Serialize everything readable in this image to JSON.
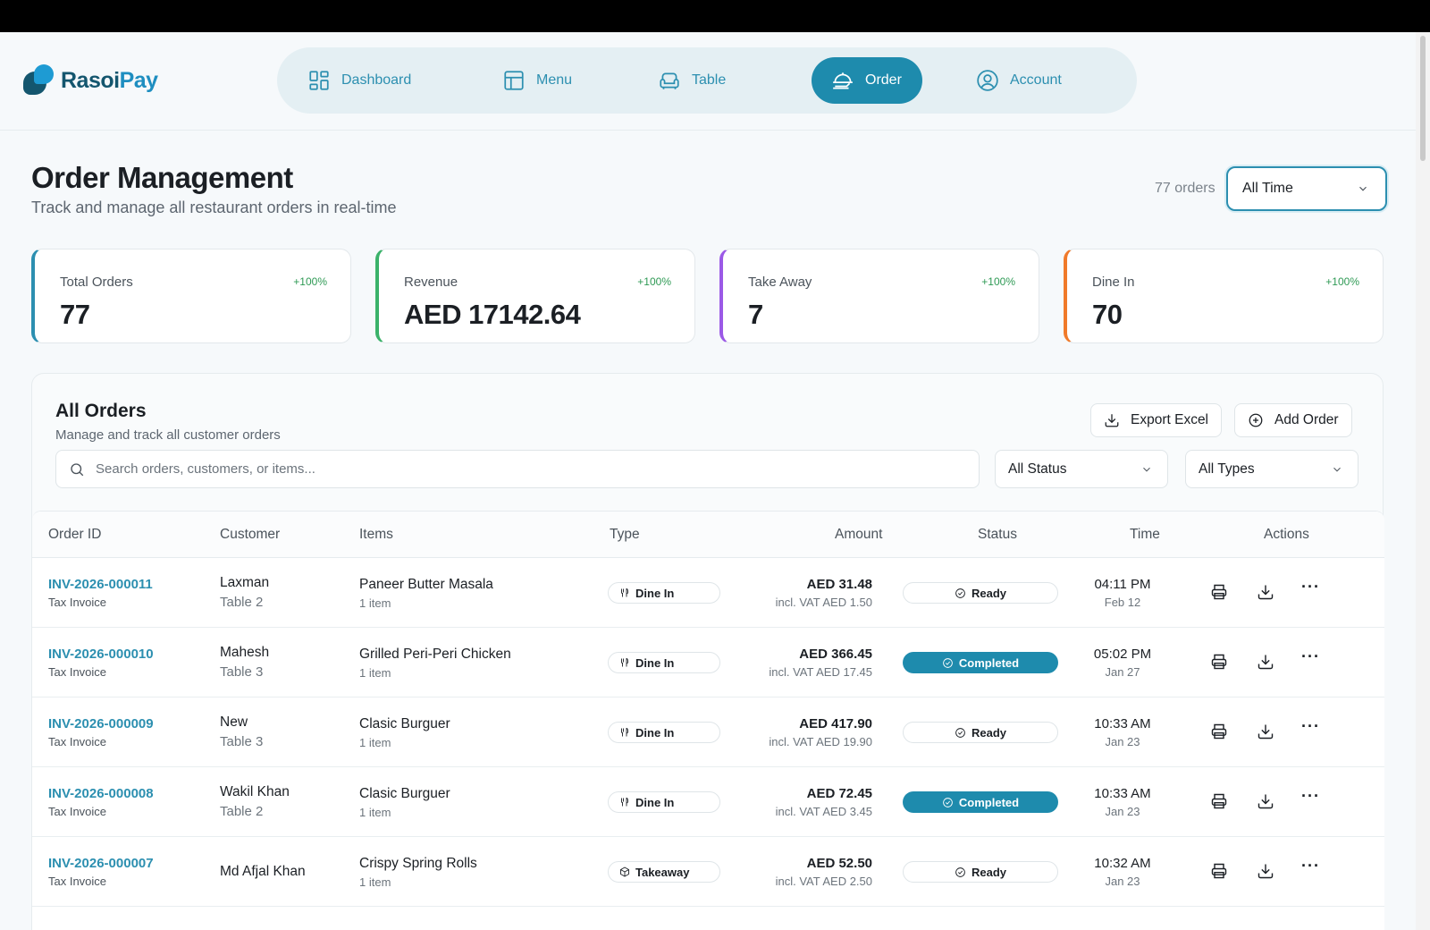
{
  "app": {
    "name_part1": "Rasoi",
    "name_part2": "Pay"
  },
  "nav": [
    {
      "id": "dashboard",
      "label": "Dashboard",
      "icon": "grid-icon",
      "active": false
    },
    {
      "id": "menu",
      "label": "Menu",
      "icon": "layout-icon",
      "active": false
    },
    {
      "id": "table",
      "label": "Table",
      "icon": "armchair-icon",
      "active": false
    },
    {
      "id": "order",
      "label": "Order",
      "icon": "food-cloche-icon",
      "active": true
    },
    {
      "id": "account",
      "label": "Account",
      "icon": "user-circle-icon",
      "active": false
    }
  ],
  "page": {
    "title": "Order Management",
    "subtitle": "Track and manage all restaurant orders in real-time",
    "orders_count": "77 orders",
    "time_filter": "All Time"
  },
  "stats": [
    {
      "label": "Total Orders",
      "value": "77",
      "delta": "+100%",
      "color": "#2c8fb0"
    },
    {
      "label": "Revenue",
      "value": "AED 17142.64",
      "delta": "+100%",
      "color": "#3bb26a"
    },
    {
      "label": "Take Away",
      "value": "7",
      "delta": "+100%",
      "color": "#9b59e6"
    },
    {
      "label": "Dine In",
      "value": "70",
      "delta": "+100%",
      "color": "#f07a2a"
    }
  ],
  "orders_panel": {
    "title": "All Orders",
    "subtitle": "Manage and track all customer orders",
    "export_label": "Export Excel",
    "add_label": "Add Order",
    "search_placeholder": "Search orders, customers, or items...",
    "status_filter": "All Status",
    "type_filter": "All Types"
  },
  "table": {
    "columns": [
      "Order ID",
      "Customer",
      "Items",
      "Type",
      "Amount",
      "Status",
      "Time",
      "Actions"
    ],
    "rows": [
      {
        "id": "INV-2026-000011",
        "doc": "Tax Invoice",
        "customer": "Laxman",
        "table": "Table 2",
        "item": "Paneer Butter Masala",
        "count": "1 item",
        "type": "Dine In",
        "amount": "AED 31.48",
        "vat": "incl. VAT AED 1.50",
        "status": "Ready",
        "time": "04:11 PM",
        "date": "Feb 12"
      },
      {
        "id": "INV-2026-000010",
        "doc": "Tax Invoice",
        "customer": "Mahesh",
        "table": "Table 3",
        "item": "Grilled Peri-Peri Chicken",
        "count": "1 item",
        "type": "Dine In",
        "amount": "AED 366.45",
        "vat": "incl. VAT AED 17.45",
        "status": "Completed",
        "time": "05:02 PM",
        "date": "Jan 27"
      },
      {
        "id": "INV-2026-000009",
        "doc": "Tax Invoice",
        "customer": "New",
        "table": "Table 3",
        "item": "Clasic Burguer",
        "count": "1 item",
        "type": "Dine In",
        "amount": "AED 417.90",
        "vat": "incl. VAT AED 19.90",
        "status": "Ready",
        "time": "10:33 AM",
        "date": "Jan 23"
      },
      {
        "id": "INV-2026-000008",
        "doc": "Tax Invoice",
        "customer": "Wakil Khan",
        "table": "Table 2",
        "item": "Clasic Burguer",
        "count": "1 item",
        "type": "Dine In",
        "amount": "AED 72.45",
        "vat": "incl. VAT AED 3.45",
        "status": "Completed",
        "time": "10:33 AM",
        "date": "Jan 23"
      },
      {
        "id": "INV-2026-000007",
        "doc": "Tax Invoice",
        "customer": "Md Afjal Khan",
        "table": "",
        "item": "Crispy Spring Rolls",
        "count": "1 item",
        "type": "Takeaway",
        "amount": "AED 52.50",
        "vat": "incl. VAT AED 2.50",
        "status": "Ready",
        "time": "10:32 AM",
        "date": "Jan 23"
      }
    ]
  },
  "colors": {
    "accent": "#1e8bad",
    "brand_dark": "#14566e",
    "brand_light": "#1e9bd3"
  }
}
